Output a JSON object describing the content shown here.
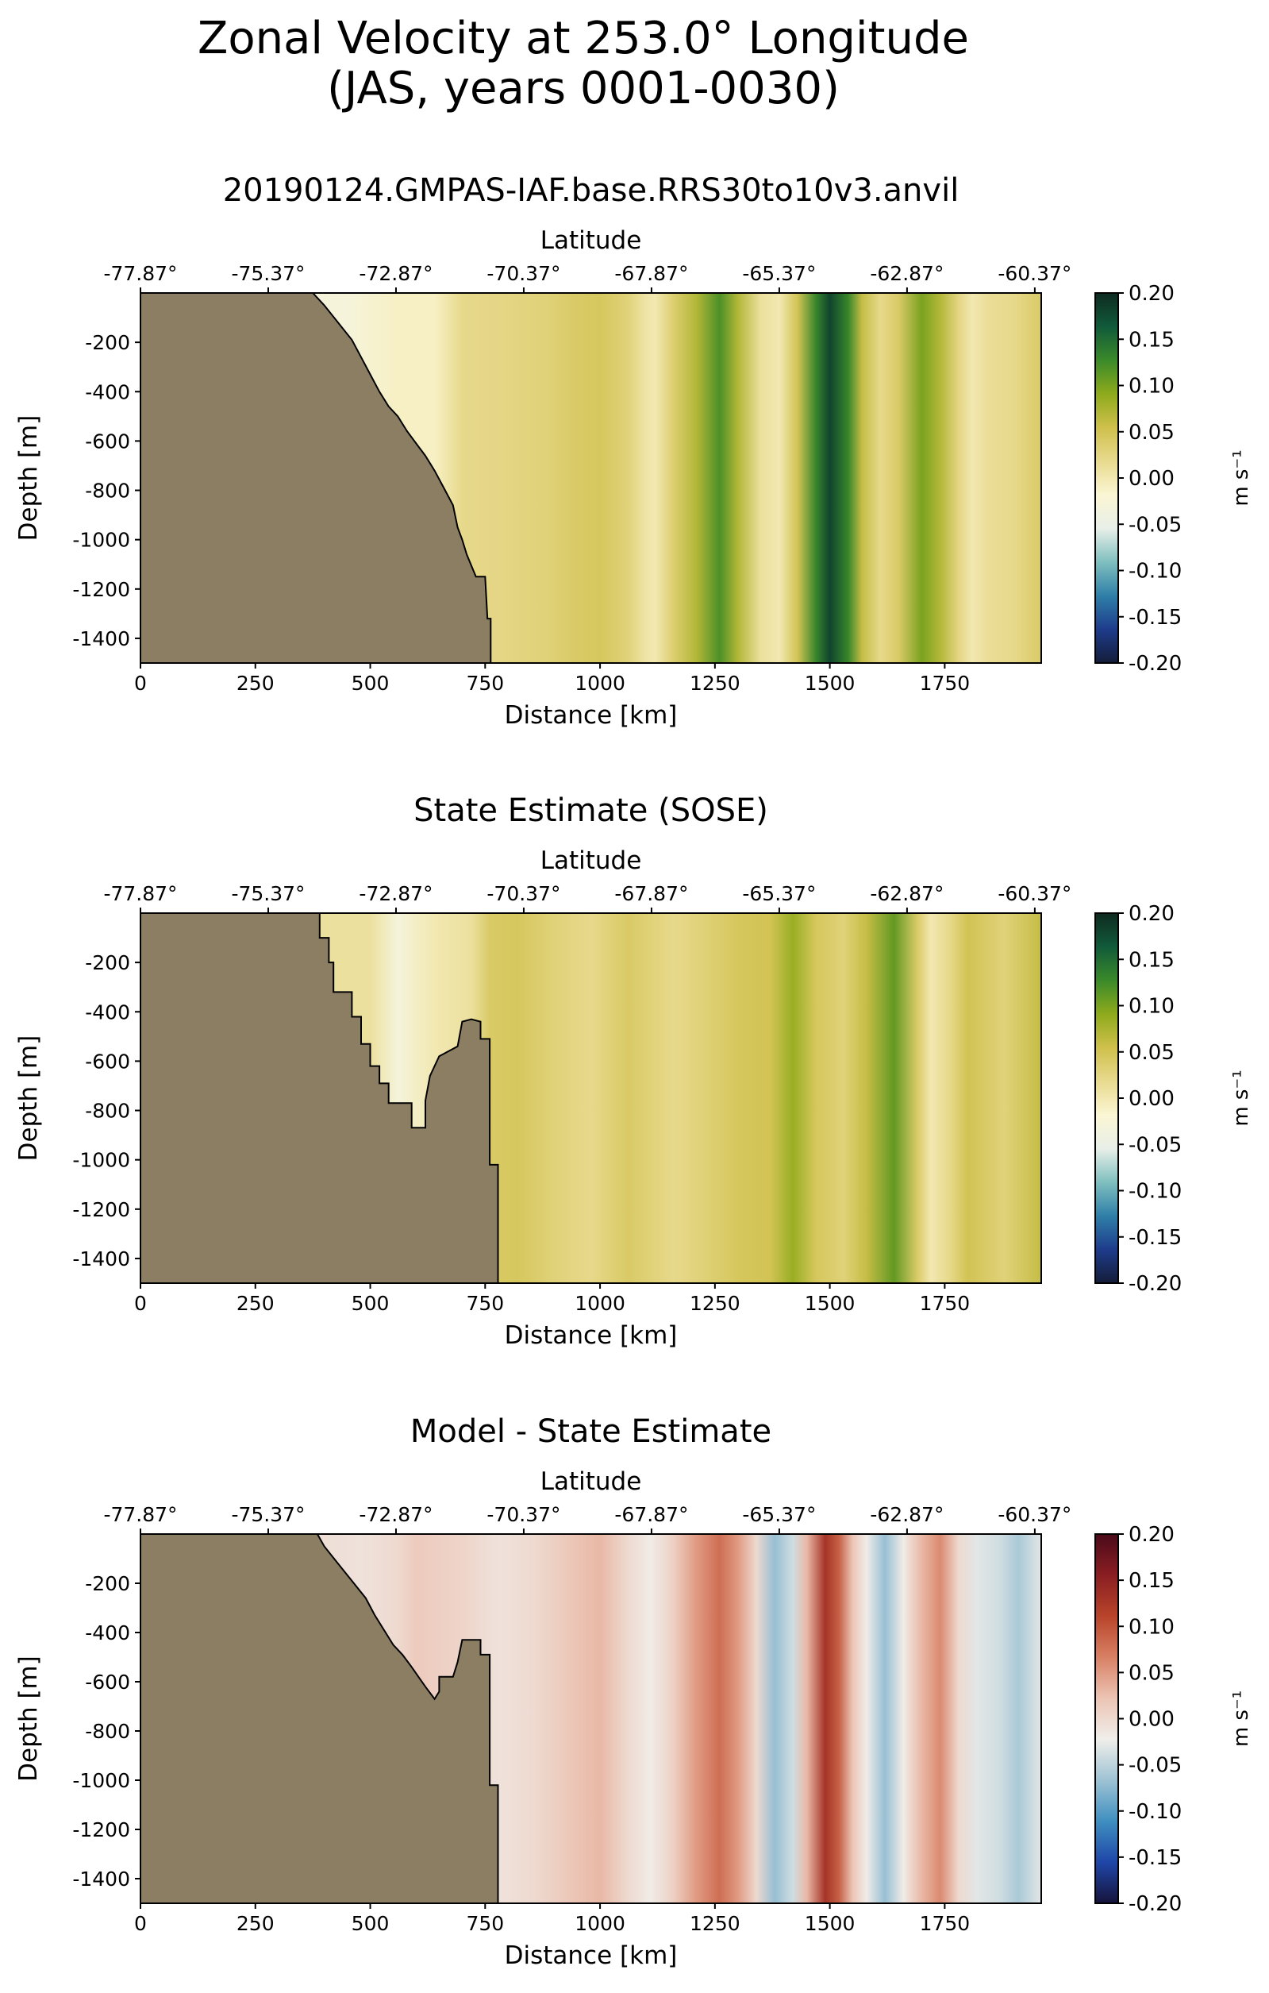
{
  "figure": {
    "title_line1": "Zonal Velocity at 253.0° Longitude",
    "title_line2": "(JAS, years 0001-0030)"
  },
  "palettes": {
    "land": "#8c7e62",
    "velocity": [
      "#141c38",
      "#1e3c8c",
      "#2f7fa8",
      "#7fbfbf",
      "#e8efe8",
      "#fbf6d4",
      "#e8da8e",
      "#cfc04c",
      "#8eaa1c",
      "#3a8a2a",
      "#115a3a",
      "#0e2a20"
    ],
    "difference": [
      "#16133a",
      "#1f46a8",
      "#3f8fc0",
      "#9ec3d4",
      "#f0eeea",
      "#ecc4b4",
      "#d88064",
      "#b8442a",
      "#8a1e22",
      "#4a0a1a"
    ]
  },
  "chart_data": [
    {
      "type": "heatmap",
      "title": "20190124.GMPAS-IAF.base.RRS30to10v3.anvil",
      "xlabel": "Distance [km]",
      "ylabel": "Depth [m]",
      "top_xlabel": "Latitude",
      "xlim": [
        0,
        1960
      ],
      "ylim": [
        -1500,
        0
      ],
      "x_ticks": [
        0,
        250,
        500,
        750,
        1000,
        1250,
        1500,
        1750
      ],
      "y_ticks": [
        -200,
        -400,
        -600,
        -800,
        -1000,
        -1200,
        -1400
      ],
      "top_ticks": [
        {
          "distance": 0,
          "label": "-77.87°"
        },
        {
          "distance": 278,
          "label": "-75.37°"
        },
        {
          "distance": 556,
          "label": "-72.87°"
        },
        {
          "distance": 834,
          "label": "-70.37°"
        },
        {
          "distance": 1112,
          "label": "-67.87°"
        },
        {
          "distance": 1390,
          "label": "-65.37°"
        },
        {
          "distance": 1668,
          "label": "-62.87°"
        },
        {
          "distance": 1946,
          "label": "-60.37°"
        }
      ],
      "colorbar": {
        "label": "m s⁻¹",
        "ticks": [
          "0.20",
          "0.15",
          "0.10",
          "0.05",
          "0.00",
          "-0.05",
          "-0.10",
          "-0.15",
          "-0.20"
        ],
        "vmin": -0.2,
        "vmax": 0.2,
        "palette": "velocity"
      },
      "velocity_profile": [
        [
          380,
          -0.03
        ],
        [
          450,
          -0.03
        ],
        [
          560,
          -0.01
        ],
        [
          640,
          -0.01
        ],
        [
          700,
          0.02
        ],
        [
          800,
          0.025
        ],
        [
          880,
          0.03
        ],
        [
          950,
          0.04
        ],
        [
          1000,
          0.045
        ],
        [
          1060,
          0.03
        ],
        [
          1100,
          0.005
        ],
        [
          1120,
          0.0
        ],
        [
          1160,
          0.035
        ],
        [
          1210,
          0.07
        ],
        [
          1260,
          0.12
        ],
        [
          1300,
          0.07
        ],
        [
          1350,
          0.01
        ],
        [
          1390,
          0.0
        ],
        [
          1430,
          0.05
        ],
        [
          1470,
          0.13
        ],
        [
          1500,
          0.18
        ],
        [
          1540,
          0.13
        ],
        [
          1570,
          0.06
        ],
        [
          1610,
          0.02
        ],
        [
          1650,
          0.04
        ],
        [
          1700,
          0.1
        ],
        [
          1740,
          0.07
        ],
        [
          1780,
          0.025
        ],
        [
          1810,
          0.0
        ],
        [
          1850,
          0.015
        ],
        [
          1900,
          0.02
        ],
        [
          1960,
          0.04
        ]
      ],
      "bathymetry": [
        [
          0,
          0
        ],
        [
          375,
          0
        ],
        [
          400,
          -50
        ],
        [
          430,
          -120
        ],
        [
          460,
          -190
        ],
        [
          480,
          -260
        ],
        [
          500,
          -330
        ],
        [
          520,
          -400
        ],
        [
          540,
          -460
        ],
        [
          560,
          -500
        ],
        [
          580,
          -560
        ],
        [
          600,
          -610
        ],
        [
          620,
          -660
        ],
        [
          640,
          -720
        ],
        [
          660,
          -790
        ],
        [
          680,
          -860
        ],
        [
          690,
          -950
        ],
        [
          700,
          -1000
        ],
        [
          710,
          -1060
        ],
        [
          730,
          -1150
        ],
        [
          750,
          -1150
        ],
        [
          755,
          -1320
        ],
        [
          762,
          -1320
        ],
        [
          762,
          -1500
        ],
        [
          0,
          -1500
        ]
      ]
    },
    {
      "type": "heatmap",
      "title": "State Estimate (SOSE)",
      "xlabel": "Distance [km]",
      "ylabel": "Depth [m]",
      "top_xlabel": "Latitude",
      "xlim": [
        0,
        1960
      ],
      "ylim": [
        -1500,
        0
      ],
      "x_ticks": [
        0,
        250,
        500,
        750,
        1000,
        1250,
        1500,
        1750
      ],
      "y_ticks": [
        -200,
        -400,
        -600,
        -800,
        -1000,
        -1200,
        -1400
      ],
      "top_ticks": [
        {
          "distance": 0,
          "label": "-77.87°"
        },
        {
          "distance": 278,
          "label": "-75.37°"
        },
        {
          "distance": 556,
          "label": "-72.87°"
        },
        {
          "distance": 834,
          "label": "-70.37°"
        },
        {
          "distance": 1112,
          "label": "-67.87°"
        },
        {
          "distance": 1390,
          "label": "-65.37°"
        },
        {
          "distance": 1668,
          "label": "-62.87°"
        },
        {
          "distance": 1946,
          "label": "-60.37°"
        }
      ],
      "colorbar": {
        "label": "m s⁻¹",
        "ticks": [
          "0.20",
          "0.15",
          "0.10",
          "0.05",
          "0.00",
          "-0.05",
          "-0.10",
          "-0.15",
          "-0.20"
        ],
        "vmin": -0.2,
        "vmax": 0.2,
        "palette": "velocity"
      },
      "velocity_profile": [
        [
          390,
          0.01
        ],
        [
          500,
          0.01
        ],
        [
          560,
          -0.03
        ],
        [
          640,
          0.0
        ],
        [
          720,
          0.01
        ],
        [
          760,
          0.04
        ],
        [
          820,
          0.045
        ],
        [
          900,
          0.03
        ],
        [
          980,
          0.02
        ],
        [
          1060,
          0.04
        ],
        [
          1160,
          0.02
        ],
        [
          1220,
          0.03
        ],
        [
          1300,
          0.045
        ],
        [
          1370,
          0.05
        ],
        [
          1420,
          0.085
        ],
        [
          1470,
          0.045
        ],
        [
          1530,
          0.03
        ],
        [
          1580,
          0.06
        ],
        [
          1640,
          0.11
        ],
        [
          1690,
          0.04
        ],
        [
          1720,
          0.0
        ],
        [
          1760,
          0.02
        ],
        [
          1800,
          0.05
        ],
        [
          1880,
          0.03
        ],
        [
          1960,
          0.06
        ]
      ],
      "bathymetry": [
        [
          0,
          0
        ],
        [
          390,
          0
        ],
        [
          390,
          -100
        ],
        [
          410,
          -100
        ],
        [
          410,
          -200
        ],
        [
          420,
          -200
        ],
        [
          420,
          -320
        ],
        [
          460,
          -320
        ],
        [
          460,
          -420
        ],
        [
          480,
          -420
        ],
        [
          480,
          -530
        ],
        [
          500,
          -530
        ],
        [
          500,
          -620
        ],
        [
          520,
          -620
        ],
        [
          520,
          -690
        ],
        [
          540,
          -690
        ],
        [
          540,
          -770
        ],
        [
          590,
          -770
        ],
        [
          590,
          -870
        ],
        [
          620,
          -870
        ],
        [
          620,
          -760
        ],
        [
          630,
          -660
        ],
        [
          650,
          -580
        ],
        [
          670,
          -560
        ],
        [
          690,
          -540
        ],
        [
          700,
          -440
        ],
        [
          720,
          -430
        ],
        [
          740,
          -440
        ],
        [
          740,
          -510
        ],
        [
          760,
          -510
        ],
        [
          760,
          -1020
        ],
        [
          778,
          -1020
        ],
        [
          778,
          -1500
        ],
        [
          0,
          -1500
        ]
      ]
    },
    {
      "type": "heatmap",
      "title": "Model - State Estimate",
      "xlabel": "Distance [km]",
      "ylabel": "Depth [m]",
      "top_xlabel": "Latitude",
      "xlim": [
        0,
        1960
      ],
      "ylim": [
        -1500,
        0
      ],
      "x_ticks": [
        0,
        250,
        500,
        750,
        1000,
        1250,
        1500,
        1750
      ],
      "y_ticks": [
        -200,
        -400,
        -600,
        -800,
        -1000,
        -1200,
        -1400
      ],
      "top_ticks": [
        {
          "distance": 0,
          "label": "-77.87°"
        },
        {
          "distance": 278,
          "label": "-75.37°"
        },
        {
          "distance": 556,
          "label": "-72.87°"
        },
        {
          "distance": 834,
          "label": "-70.37°"
        },
        {
          "distance": 1112,
          "label": "-67.87°"
        },
        {
          "distance": 1390,
          "label": "-65.37°"
        },
        {
          "distance": 1668,
          "label": "-62.87°"
        },
        {
          "distance": 1946,
          "label": "-60.37°"
        }
      ],
      "colorbar": {
        "label": "m s⁻¹",
        "ticks": [
          "0.20",
          "0.15",
          "0.10",
          "0.05",
          "0.00",
          "-0.05",
          "-0.10",
          "-0.15",
          "-0.20"
        ],
        "vmin": -0.2,
        "vmax": 0.2,
        "palette": "difference"
      },
      "velocity_profile": [
        [
          390,
          -0.005
        ],
        [
          480,
          -0.01
        ],
        [
          560,
          0.0
        ],
        [
          600,
          0.015
        ],
        [
          700,
          0.005
        ],
        [
          780,
          -0.01
        ],
        [
          860,
          0.0
        ],
        [
          940,
          0.02
        ],
        [
          1000,
          0.03
        ],
        [
          1060,
          0.0
        ],
        [
          1110,
          -0.02
        ],
        [
          1160,
          0.01
        ],
        [
          1210,
          0.05
        ],
        [
          1260,
          0.08
        ],
        [
          1300,
          0.05
        ],
        [
          1340,
          0.0
        ],
        [
          1380,
          -0.07
        ],
        [
          1420,
          -0.04
        ],
        [
          1450,
          0.03
        ],
        [
          1490,
          0.13
        ],
        [
          1520,
          0.09
        ],
        [
          1550,
          0.02
        ],
        [
          1580,
          -0.02
        ],
        [
          1620,
          -0.07
        ],
        [
          1660,
          -0.02
        ],
        [
          1700,
          0.03
        ],
        [
          1740,
          0.06
        ],
        [
          1780,
          0.0
        ],
        [
          1820,
          -0.03
        ],
        [
          1870,
          -0.04
        ],
        [
          1910,
          -0.06
        ],
        [
          1960,
          -0.03
        ]
      ],
      "bathymetry": [
        [
          0,
          0
        ],
        [
          385,
          0
        ],
        [
          400,
          -50
        ],
        [
          430,
          -120
        ],
        [
          460,
          -190
        ],
        [
          490,
          -260
        ],
        [
          510,
          -330
        ],
        [
          530,
          -390
        ],
        [
          550,
          -450
        ],
        [
          570,
          -490
        ],
        [
          590,
          -540
        ],
        [
          605,
          -580
        ],
        [
          620,
          -620
        ],
        [
          640,
          -670
        ],
        [
          650,
          -640
        ],
        [
          650,
          -580
        ],
        [
          680,
          -580
        ],
        [
          690,
          -520
        ],
        [
          700,
          -430
        ],
        [
          740,
          -430
        ],
        [
          740,
          -490
        ],
        [
          760,
          -490
        ],
        [
          760,
          -1020
        ],
        [
          778,
          -1020
        ],
        [
          778,
          -1500
        ],
        [
          0,
          -1500
        ]
      ]
    }
  ]
}
